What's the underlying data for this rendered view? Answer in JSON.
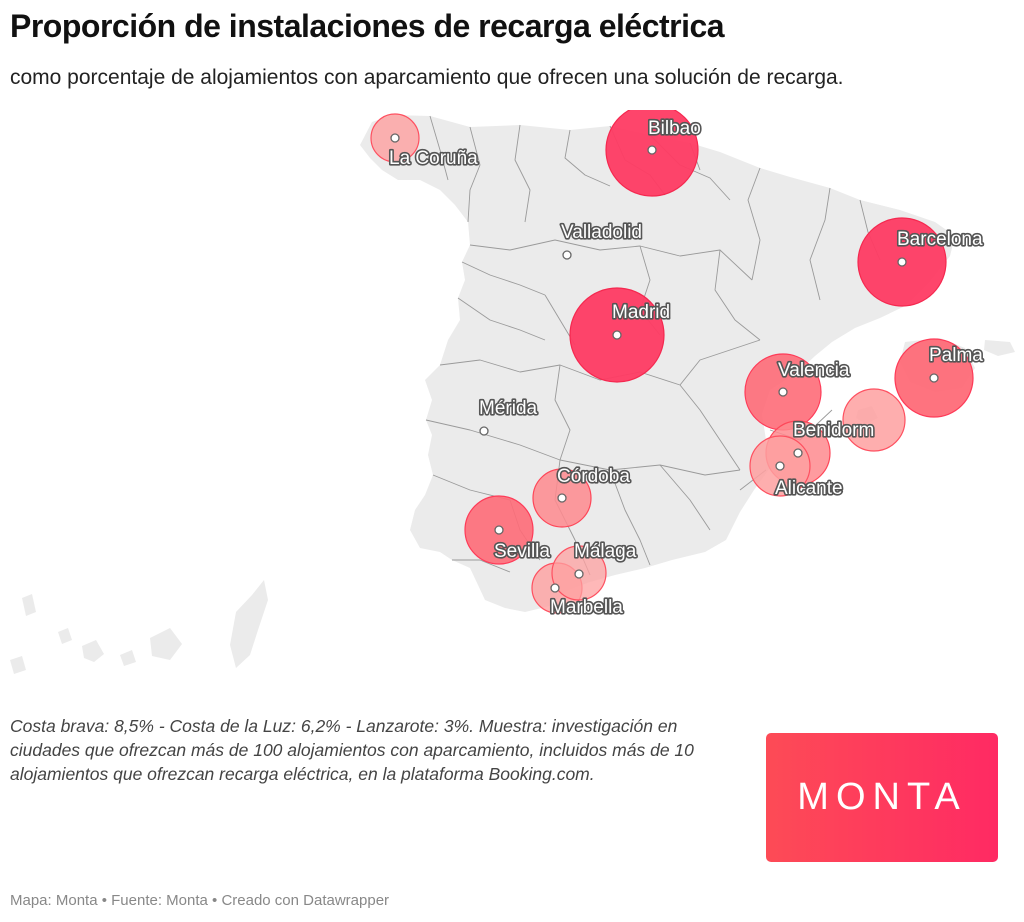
{
  "title": "Proporción de instalaciones de recarga eléctrica",
  "subtitle": "como porcentaje de alojamientos con aparcamiento que ofrecen una solución de recarga.",
  "note": "Costa brava: 8,5% - Costa de la Luz: 6,2% - Lanzarote: 3%. Muestra: investigación en ciudades que ofrezcan más de 100 alojamientos con aparcamiento, incluidos más de 10 alojamientos que ofrezcan recarga eléctrica, en la plataforma Booking.com.",
  "footer": "Mapa: Monta • Fuente: Monta • Creado con Datawrapper",
  "logo": "MONTA",
  "colors": {
    "land": "#ebebeb",
    "border": "#9a9a9a",
    "bubble_strong": "#fe3b63",
    "bubble_medium": "#fe6b78",
    "bubble_light": "#fea0a0",
    "brand": "#fe3b5c"
  },
  "cities": {
    "la_coruna": "La Coruña",
    "bilbao": "Bilbao",
    "valladolid": "Valladolid",
    "barcelona": "Barcelona",
    "madrid": "Madrid",
    "palma": "Palma",
    "valencia": "Valencia",
    "merida": "Mérida",
    "benidorm": "Benidorm",
    "alicante": "Alicante",
    "cordoba": "Córdoba",
    "sevilla": "Sevilla",
    "malaga": "Málaga",
    "marbella": "Marbella"
  }
}
